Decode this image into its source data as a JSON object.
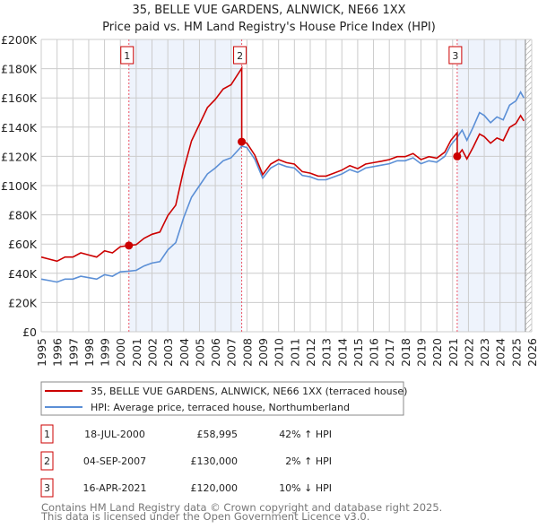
{
  "chart_data": {
    "type": "line",
    "title": "35, BELLE VUE GARDENS, ALNWICK, NE66 1XX",
    "subtitle": "Price paid vs. HM Land Registry's House Price Index (HPI)",
    "xlabel": "",
    "ylabel": "",
    "xlim": [
      1995,
      2026
    ],
    "ylim": [
      0,
      200000
    ],
    "grid": true,
    "y_ticks": [
      {
        "v": 0,
        "label": "£0"
      },
      {
        "v": 20000,
        "label": "£20K"
      },
      {
        "v": 40000,
        "label": "£40K"
      },
      {
        "v": 60000,
        "label": "£60K"
      },
      {
        "v": 80000,
        "label": "£80K"
      },
      {
        "v": 100000,
        "label": "£100K"
      },
      {
        "v": 120000,
        "label": "£120K"
      },
      {
        "v": 140000,
        "label": "£140K"
      },
      {
        "v": 160000,
        "label": "£160K"
      },
      {
        "v": 180000,
        "label": "£180K"
      },
      {
        "v": 200000,
        "label": "£200K"
      }
    ],
    "x_ticks": [
      "1995",
      "1996",
      "1997",
      "1998",
      "1999",
      "2000",
      "2001",
      "2002",
      "2003",
      "2004",
      "2005",
      "2006",
      "2007",
      "2008",
      "2009",
      "2010",
      "2011",
      "2012",
      "2013",
      "2014",
      "2015",
      "2016",
      "2017",
      "2018",
      "2019",
      "2020",
      "2021",
      "2022",
      "2023",
      "2024",
      "2025",
      "2026"
    ],
    "legend_position": "below",
    "series": [
      {
        "name": "35, BELLE VUE GARDENS, ALNWICK, NE66 1XX (terraced house)",
        "color": "#cc0000",
        "points": [
          [
            1995.0,
            51100
          ],
          [
            1995.5,
            49700
          ],
          [
            1996.0,
            48300
          ],
          [
            1996.5,
            51100
          ],
          [
            1997.0,
            51100
          ],
          [
            1997.5,
            54000
          ],
          [
            1998.0,
            52500
          ],
          [
            1998.5,
            51100
          ],
          [
            1999.0,
            55400
          ],
          [
            1999.5,
            54000
          ],
          [
            2000.0,
            58200
          ],
          [
            2000.54,
            58995
          ],
          [
            2001.0,
            59600
          ],
          [
            2001.5,
            63900
          ],
          [
            2002.0,
            66700
          ],
          [
            2002.5,
            68200
          ],
          [
            2003.0,
            79500
          ],
          [
            2003.5,
            86600
          ],
          [
            2004.0,
            110800
          ],
          [
            2004.5,
            130600
          ],
          [
            2005.0,
            142000
          ],
          [
            2005.5,
            153400
          ],
          [
            2006.0,
            159000
          ],
          [
            2006.5,
            166100
          ],
          [
            2007.0,
            169000
          ],
          [
            2007.67,
            180300
          ],
          [
            2007.67,
            130000
          ],
          [
            2008.0,
            129000
          ],
          [
            2008.5,
            120800
          ],
          [
            2009.0,
            107500
          ],
          [
            2009.5,
            114700
          ],
          [
            2010.0,
            117800
          ],
          [
            2010.5,
            115700
          ],
          [
            2011.0,
            114700
          ],
          [
            2011.5,
            109600
          ],
          [
            2012.0,
            108500
          ],
          [
            2012.5,
            106500
          ],
          [
            2013.0,
            106500
          ],
          [
            2013.5,
            108500
          ],
          [
            2014.0,
            110600
          ],
          [
            2014.5,
            113700
          ],
          [
            2015.0,
            111600
          ],
          [
            2015.5,
            114700
          ],
          [
            2016.0,
            115700
          ],
          [
            2016.5,
            116700
          ],
          [
            2017.0,
            117800
          ],
          [
            2017.5,
            119800
          ],
          [
            2018.0,
            119800
          ],
          [
            2018.5,
            121900
          ],
          [
            2019.0,
            117800
          ],
          [
            2019.5,
            119800
          ],
          [
            2020.0,
            118800
          ],
          [
            2020.5,
            122900
          ],
          [
            2020.9,
            131100
          ],
          [
            2021.29,
            136200
          ],
          [
            2021.29,
            120000
          ],
          [
            2021.6,
            124500
          ],
          [
            2021.9,
            118200
          ],
          [
            2022.3,
            126300
          ],
          [
            2022.7,
            135300
          ],
          [
            2023.0,
            133500
          ],
          [
            2023.4,
            129000
          ],
          [
            2023.8,
            132600
          ],
          [
            2024.2,
            130800
          ],
          [
            2024.6,
            139800
          ],
          [
            2025.0,
            142500
          ],
          [
            2025.3,
            147900
          ],
          [
            2025.5,
            144300
          ]
        ]
      },
      {
        "name": "HPI: Average price, terraced house, Northumberland",
        "color": "#5b8fd6",
        "points": [
          [
            1995.0,
            36000
          ],
          [
            1995.5,
            35000
          ],
          [
            1996.0,
            34000
          ],
          [
            1996.5,
            36000
          ],
          [
            1997.0,
            36000
          ],
          [
            1997.5,
            38000
          ],
          [
            1998.0,
            37000
          ],
          [
            1998.5,
            36000
          ],
          [
            1999.0,
            39000
          ],
          [
            1999.5,
            38000
          ],
          [
            2000.0,
            41000
          ],
          [
            2000.54,
            41500
          ],
          [
            2001.0,
            42000
          ],
          [
            2001.5,
            45000
          ],
          [
            2002.0,
            47000
          ],
          [
            2002.5,
            48000
          ],
          [
            2003.0,
            56000
          ],
          [
            2003.5,
            61000
          ],
          [
            2004.0,
            78000
          ],
          [
            2004.5,
            92000
          ],
          [
            2005.0,
            100000
          ],
          [
            2005.5,
            108000
          ],
          [
            2006.0,
            112000
          ],
          [
            2006.5,
            117000
          ],
          [
            2007.0,
            119000
          ],
          [
            2007.67,
            127000
          ],
          [
            2008.0,
            126000
          ],
          [
            2008.5,
            118000
          ],
          [
            2009.0,
            105000
          ],
          [
            2009.5,
            112000
          ],
          [
            2010.0,
            115000
          ],
          [
            2010.5,
            113000
          ],
          [
            2011.0,
            112000
          ],
          [
            2011.5,
            107000
          ],
          [
            2012.0,
            106000
          ],
          [
            2012.5,
            104000
          ],
          [
            2013.0,
            104000
          ],
          [
            2013.5,
            106000
          ],
          [
            2014.0,
            108000
          ],
          [
            2014.5,
            111000
          ],
          [
            2015.0,
            109000
          ],
          [
            2015.5,
            112000
          ],
          [
            2016.0,
            113000
          ],
          [
            2016.5,
            114000
          ],
          [
            2017.0,
            115000
          ],
          [
            2017.5,
            117000
          ],
          [
            2018.0,
            117000
          ],
          [
            2018.5,
            119000
          ],
          [
            2019.0,
            115000
          ],
          [
            2019.5,
            117000
          ],
          [
            2020.0,
            116000
          ],
          [
            2020.5,
            120000
          ],
          [
            2020.9,
            128000
          ],
          [
            2021.29,
            133000
          ],
          [
            2021.6,
            138000
          ],
          [
            2021.9,
            131000
          ],
          [
            2022.3,
            140000
          ],
          [
            2022.7,
            150000
          ],
          [
            2023.0,
            148000
          ],
          [
            2023.4,
            143000
          ],
          [
            2023.8,
            147000
          ],
          [
            2024.2,
            145000
          ],
          [
            2024.6,
            155000
          ],
          [
            2025.0,
            158000
          ],
          [
            2025.3,
            164000
          ],
          [
            2025.5,
            160000
          ]
        ]
      }
    ],
    "shaded_ranges": [
      [
        2000.54,
        2007.67
      ],
      [
        2021.29,
        2025.6
      ]
    ],
    "data_end": 2025.6,
    "sales": [
      {
        "n": "1",
        "x": 2000.54,
        "price": 58995,
        "date": "18-JUL-2000",
        "price_label": "£58,995",
        "hpi": "42% ↑ HPI"
      },
      {
        "n": "2",
        "x": 2007.67,
        "price": 130000,
        "date": "04-SEP-2007",
        "price_label": "£130,000",
        "hpi": "2% ↑ HPI"
      },
      {
        "n": "3",
        "x": 2021.29,
        "price": 120000,
        "date": "16-APR-2021",
        "price_label": "£120,000",
        "hpi": "10% ↓ HPI"
      }
    ]
  },
  "footer": [
    "Contains HM Land Registry data © Crown copyright and database right 2025.",
    "This data is licensed under the Open Government Licence v3.0."
  ],
  "colors": {
    "shade": "#eef3fc",
    "grid": "#cccccc",
    "marker_line": "#ee5566"
  }
}
